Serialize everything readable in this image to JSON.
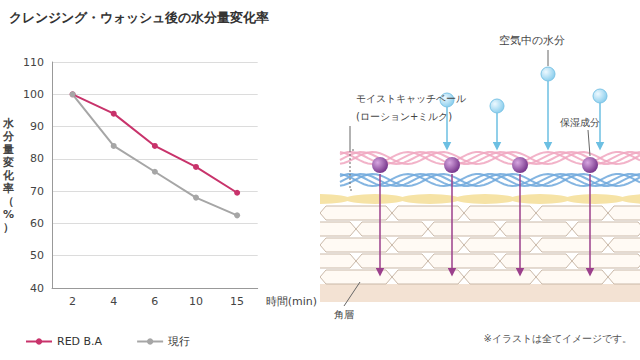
{
  "chart_data": {
    "type": "line",
    "title": "クレンジング・ウォッシュ後の水分量変化率",
    "x_label": "時間(min)",
    "y_label": "水分量変化率（%）",
    "categories": [
      "2",
      "4",
      "6",
      "10",
      "15"
    ],
    "series": [
      {
        "name": "RED B.A",
        "color": "#c8336b",
        "marker": "circle",
        "values": [
          100,
          94,
          84,
          77.5,
          69.5
        ]
      },
      {
        "name": "現行",
        "color": "#a6a6a6",
        "marker": "circle",
        "values": [
          100,
          84,
          76,
          68,
          62.5
        ]
      }
    ],
    "ylim": [
      40,
      110
    ],
    "yticks": [
      40,
      50,
      60,
      70,
      80,
      90,
      100,
      110
    ],
    "grid": true,
    "legend": "bottom"
  },
  "diagram": {
    "air_moisture": "空気中の水分",
    "veil": "モイストキャッチベール",
    "veil_detail": "(ローション+ミルク)",
    "moisturizer": "保湿成分",
    "stratum_corneum": "角層",
    "note": "※イラストは全てイメージです。"
  }
}
